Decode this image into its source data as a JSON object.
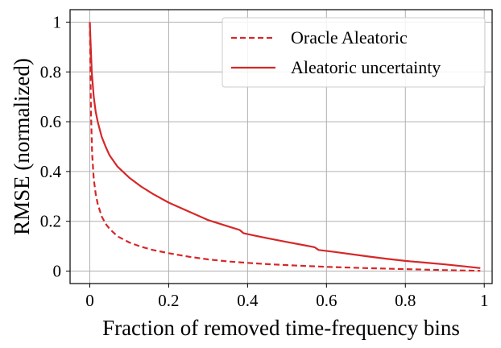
{
  "chart_data": {
    "type": "line",
    "title": "",
    "xlabel": "Fraction of removed time-frequency bins",
    "ylabel": "RMSE (normalized)",
    "xlim": [
      -0.05,
      1.02
    ],
    "ylim": [
      -0.05,
      1.05
    ],
    "xticks": [
      0,
      0.2,
      0.4,
      0.6,
      0.8,
      1
    ],
    "xtick_labels": [
      "0",
      "0.2",
      "0.4",
      "0.6",
      "0.8",
      "1"
    ],
    "yticks": [
      0,
      0.2,
      0.4,
      0.6,
      0.8,
      1
    ],
    "ytick_labels": [
      "0",
      "0.2",
      "0.4",
      "0.6",
      "0.8",
      "1"
    ],
    "grid": true,
    "legend_position": "upper right",
    "series": [
      {
        "name": "Oracle Aleatoric",
        "color": "#d62728",
        "style": "dashed",
        "x": [
          0,
          0.003,
          0.006,
          0.01,
          0.015,
          0.02,
          0.03,
          0.04,
          0.05,
          0.07,
          0.1,
          0.13,
          0.16,
          0.2,
          0.25,
          0.3,
          0.35,
          0.4,
          0.45,
          0.5,
          0.6,
          0.7,
          0.8,
          0.9,
          0.99
        ],
        "y": [
          1.0,
          0.63,
          0.47,
          0.37,
          0.31,
          0.27,
          0.22,
          0.19,
          0.17,
          0.14,
          0.115,
          0.098,
          0.085,
          0.072,
          0.058,
          0.047,
          0.039,
          0.033,
          0.028,
          0.024,
          0.017,
          0.012,
          0.008,
          0.004,
          0.001
        ]
      },
      {
        "name": "Aleatoric uncertainty",
        "color": "#d62728",
        "style": "solid",
        "x": [
          0,
          0.005,
          0.01,
          0.015,
          0.02,
          0.03,
          0.04,
          0.05,
          0.07,
          0.1,
          0.13,
          0.16,
          0.2,
          0.25,
          0.3,
          0.35,
          0.38,
          0.39,
          0.42,
          0.45,
          0.5,
          0.55,
          0.57,
          0.58,
          0.62,
          0.7,
          0.75,
          0.8,
          0.85,
          0.9,
          0.95,
          0.99
        ],
        "y": [
          1.0,
          0.8,
          0.7,
          0.64,
          0.6,
          0.54,
          0.5,
          0.465,
          0.42,
          0.375,
          0.34,
          0.31,
          0.275,
          0.24,
          0.205,
          0.18,
          0.165,
          0.152,
          0.142,
          0.132,
          0.117,
          0.102,
          0.096,
          0.085,
          0.077,
          0.06,
          0.05,
          0.041,
          0.034,
          0.027,
          0.019,
          0.012
        ]
      }
    ]
  }
}
